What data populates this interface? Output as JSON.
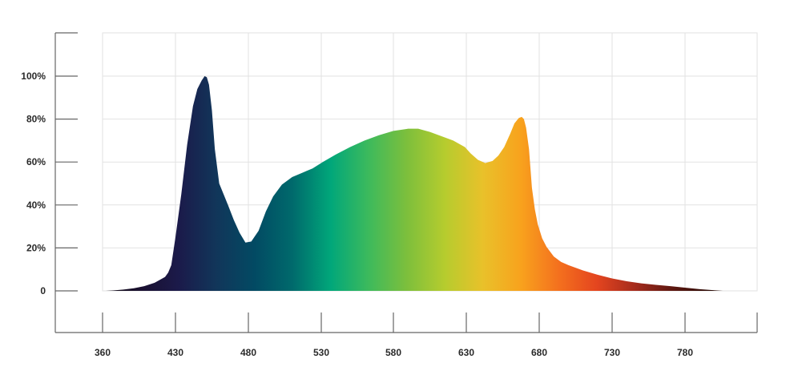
{
  "chart_data": {
    "type": "area",
    "title": "",
    "xlabel": "",
    "ylabel": "",
    "x_ticks": [
      "360",
      "430",
      "480",
      "530",
      "580",
      "630",
      "680",
      "730",
      "780"
    ],
    "y_ticks": [
      "0",
      "20%",
      "40%",
      "60%",
      "80%",
      "100%"
    ],
    "xlim": [
      360,
      810
    ],
    "ylim": [
      0,
      120
    ],
    "grid": true,
    "legend": "none",
    "series": [
      {
        "x": [
          363,
          370,
          380,
          390,
          400,
          410,
          420,
          423,
          426,
          430,
          434,
          438,
          442,
          445,
          448,
          450,
          451.5,
          453,
          455,
          457,
          460,
          463,
          466,
          470,
          474,
          478,
          482,
          487,
          492,
          497,
          503,
          510,
          517,
          524,
          531,
          540,
          550,
          560,
          570,
          580,
          590,
          597,
          605,
          613,
          621,
          629,
          633,
          638,
          643,
          648,
          652,
          656,
          660,
          663,
          666,
          668,
          669.5,
          671,
          673,
          675,
          677,
          679,
          682,
          685,
          690,
          695,
          700,
          710,
          720,
          730,
          740,
          750,
          760,
          770,
          780,
          790,
          800,
          806
        ],
        "values": [
          0,
          0.2,
          0.6,
          1.2,
          2.2,
          3.8,
          6.5,
          8.5,
          12,
          25,
          45,
          68,
          86,
          94,
          98,
          100,
          99.5,
          96,
          84,
          66,
          50,
          45,
          40,
          33,
          27,
          22.5,
          23,
          28,
          37,
          44,
          49.5,
          53,
          55,
          57,
          60,
          63.5,
          67,
          70,
          72.5,
          74.5,
          75.5,
          75.5,
          74,
          72,
          70,
          67,
          64,
          61,
          59.5,
          60.5,
          63,
          67,
          73,
          78,
          80.5,
          81,
          80,
          76,
          66,
          48,
          38,
          31,
          24.5,
          20.5,
          16,
          13.5,
          12,
          9.5,
          7.5,
          5.8,
          4.5,
          3.5,
          2.8,
          2.2,
          1.5,
          0.8,
          0.3,
          0
        ]
      }
    ],
    "colors": {
      "grid": "#e2e2e2",
      "axis": "#666666",
      "tick_text": "#2a2a2a",
      "gradient": [
        "#120c14",
        "#1a1030",
        "#1b1a4a",
        "#11365a",
        "#024a63",
        "#006a6c",
        "#01a77a",
        "#3dba5c",
        "#7dbf3c",
        "#b6cc2e",
        "#e9c12a",
        "#f8a21d",
        "#f4701e",
        "#e4451f",
        "#a52b1c",
        "#5c1710",
        "#2c0c07",
        "#140703"
      ]
    }
  }
}
